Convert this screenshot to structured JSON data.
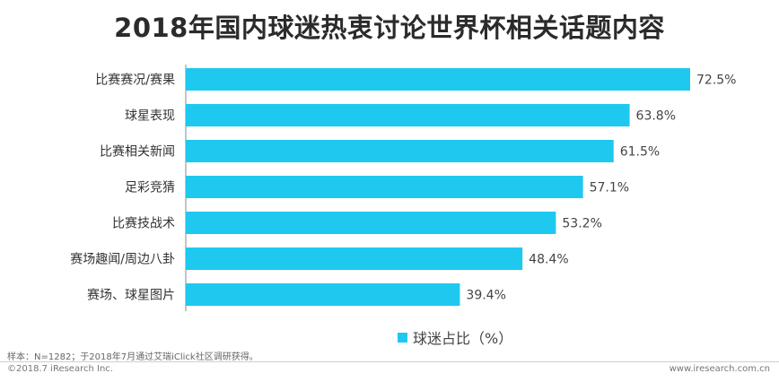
{
  "chart_data": {
    "type": "bar",
    "orientation": "horizontal",
    "title": "2018年国内球迷热衷讨论世界杯相关话题内容",
    "categories": [
      "比赛赛况/赛果",
      "球星表现",
      "比赛相关新闻",
      "足彩竞猜",
      "比赛技战术",
      "赛场趣闻/周边八卦",
      "赛场、球星图片"
    ],
    "values": [
      72.5,
      63.8,
      61.5,
      57.1,
      53.2,
      48.4,
      39.4
    ],
    "value_labels": [
      "72.5%",
      "63.8%",
      "61.5%",
      "57.1%",
      "53.2%",
      "48.4%",
      "39.4%"
    ],
    "series": [
      {
        "name": "球迷占比（%）",
        "values": [
          72.5,
          63.8,
          61.5,
          57.1,
          53.2,
          48.4,
          39.4
        ]
      }
    ],
    "xlim": [
      0,
      80
    ],
    "grid": false,
    "legend": "bottom-center",
    "bar_color": "#1ec8ef"
  },
  "footnote": "样本：N=1282；于2018年7月通过艾瑞iClick社区调研获得。",
  "copyright": "©2018.7 iResearch Inc.",
  "website": "www.iresearch.com.cn"
}
